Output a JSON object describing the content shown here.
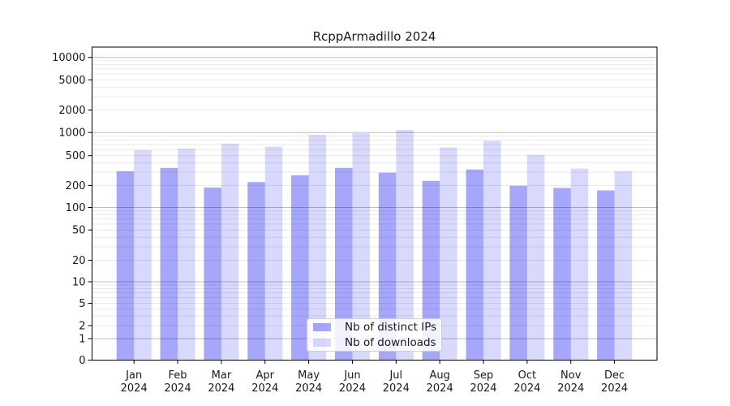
{
  "chart_data": {
    "type": "bar",
    "title": "RcppArmadillo 2024",
    "categories": [
      "Jan",
      "Feb",
      "Mar",
      "Apr",
      "May",
      "Jun",
      "Jul",
      "Aug",
      "Sep",
      "Oct",
      "Nov",
      "Dec"
    ],
    "x_tick_year": "2024",
    "series": [
      {
        "name": "Nb of distinct IPs",
        "color": "rgba(0,0,240,0.35)",
        "values": [
          310,
          343,
          187,
          222,
          274,
          343,
          296,
          230,
          327,
          198,
          185,
          171
        ]
      },
      {
        "name": "Nb of downloads",
        "color": "rgba(0,0,240,0.15)",
        "values": [
          592,
          617,
          716,
          655,
          930,
          978,
          1082,
          640,
          781,
          512,
          336,
          311
        ]
      }
    ],
    "yscale": "log-like (0,1,2,5 sequence)",
    "y_ticks": [
      0,
      1,
      2,
      5,
      10,
      20,
      50,
      100,
      200,
      500,
      1000,
      2000,
      5000,
      10000
    ],
    "ylim": [
      0,
      13700
    ],
    "grid": "on",
    "legend_position": "inside lower-center-left",
    "colors": {
      "major_grid": "#bdbdbd",
      "minor_grid": "#e9e9e9",
      "spine": "#000000",
      "tick_text": "#1a1a1a"
    }
  }
}
